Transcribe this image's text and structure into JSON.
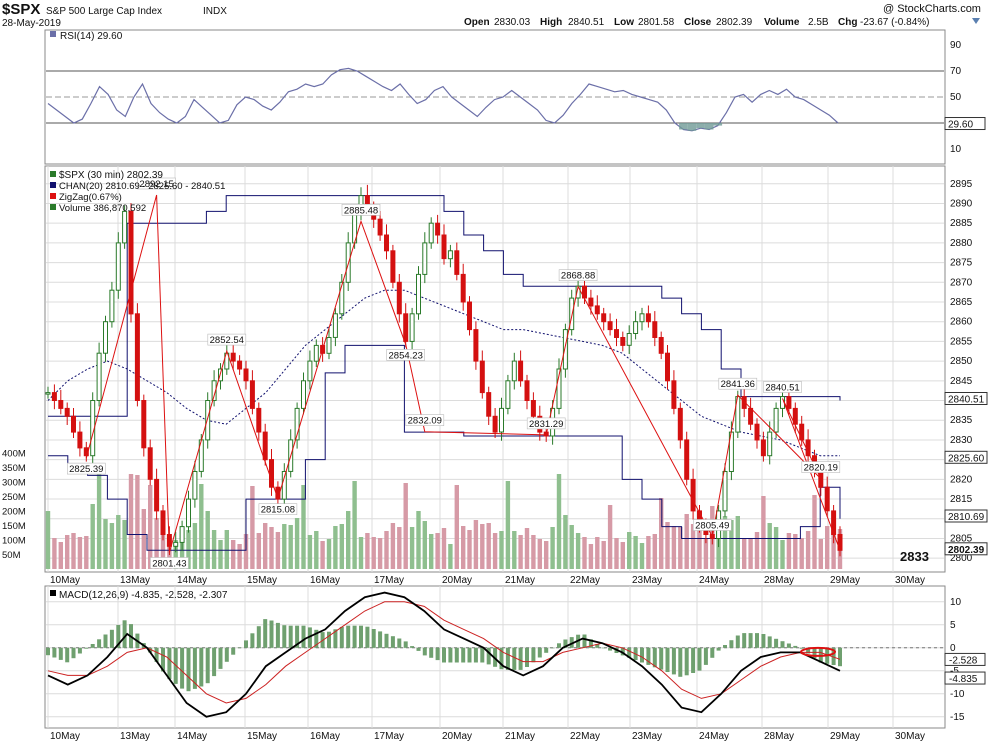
{
  "header": {
    "symbol": "$SPX",
    "name": "S&P 500 Large Cap Index",
    "exchange": "INDX",
    "date": "28-May-2019",
    "watermark": "@ StockCharts.com",
    "ohlc": {
      "open_label": "Open",
      "open": "2830.03",
      "high_label": "High",
      "high": "2840.51",
      "low_label": "Low",
      "low": "2801.58",
      "close_label": "Close",
      "close": "2802.39",
      "volume_label": "Volume",
      "volume": "2.5B",
      "chg_label": "Chg",
      "chg": "-23.67 (-0.84%)"
    }
  },
  "colors": {
    "up": "#2a7a2a",
    "down": "#d41010",
    "rsi": "#6b6fa8",
    "channel": "#10106e",
    "zigzag": "#dd1111",
    "vol_up": "#8fbf8f",
    "vol_down": "#d69aa6",
    "macd": "#000000",
    "signal": "#cc2222",
    "hist": "#6fa06f",
    "grid": "#dcdcdc"
  },
  "chart_data": [
    {
      "type": "line",
      "panel": "RSI",
      "legend": "RSI(14) 29.60",
      "ylim": [
        0,
        100
      ],
      "y_ticks": [
        10,
        30,
        50,
        70,
        90
      ],
      "reference_lines": [
        30,
        50,
        70
      ],
      "last_value": "29.60",
      "values": [
        45,
        40,
        35,
        30,
        33,
        45,
        58,
        52,
        40,
        35,
        50,
        60,
        45,
        38,
        33,
        30,
        35,
        48,
        42,
        36,
        30,
        32,
        44,
        50,
        48,
        43,
        40,
        46,
        54,
        56,
        60,
        58,
        60,
        67,
        71,
        72,
        70,
        66,
        62,
        58,
        55,
        60,
        52,
        45,
        48,
        55,
        58,
        50,
        45,
        40,
        35,
        42,
        48,
        50,
        55,
        50,
        45,
        40,
        32,
        30,
        36,
        45,
        52,
        60,
        58,
        56,
        54,
        55,
        52,
        50,
        48,
        46,
        40,
        30,
        25,
        24,
        26,
        25,
        28,
        38,
        50,
        52,
        46,
        52,
        55,
        52,
        56,
        50,
        48,
        44,
        40,
        36,
        30
      ]
    },
    {
      "type": "bar",
      "panel": "Price",
      "series_labels": {
        "price": "$SPX (30 min) 2802.39",
        "channel": "CHAN(20) 2810.69 - 2825.60 - 2840.51",
        "zigzag": "ZigZag(0.67%)",
        "volume": "Volume 386,870,592"
      },
      "ylim": [
        2797,
        2899
      ],
      "y_ticks": [
        2800,
        2805,
        2810,
        2815,
        2820,
        2825,
        2830,
        2835,
        2840,
        2845,
        2850,
        2855,
        2860,
        2865,
        2870,
        2875,
        2880,
        2885,
        2890,
        2895
      ],
      "x_ticks": [
        "10May",
        "13May",
        "14May",
        "15May",
        "16May",
        "17May",
        "20May",
        "21May",
        "22May",
        "23May",
        "24May",
        "28May",
        "29May",
        "30May"
      ],
      "volume_ticks": [
        "50M",
        "100M",
        "150M",
        "200M",
        "250M",
        "300M",
        "350M",
        "400M"
      ],
      "closes": [
        2842,
        2840,
        2838,
        2836,
        2832,
        2828,
        2826,
        2840,
        2852,
        2860,
        2868,
        2880,
        2888,
        2862,
        2840,
        2828,
        2820,
        2812,
        2806,
        2803,
        2804,
        2808,
        2815,
        2822,
        2830,
        2840,
        2845,
        2848,
        2852,
        2850,
        2848,
        2845,
        2838,
        2832,
        2825,
        2818,
        2815,
        2822,
        2830,
        2838,
        2845,
        2850,
        2854,
        2852,
        2856,
        2862,
        2870,
        2880,
        2888,
        2892,
        2889,
        2886,
        2882,
        2878,
        2870,
        2862,
        2855,
        2862,
        2872,
        2880,
        2885,
        2882,
        2876,
        2878,
        2872,
        2865,
        2858,
        2850,
        2842,
        2836,
        2832,
        2838,
        2845,
        2850,
        2845,
        2840,
        2836,
        2832,
        2831,
        2838,
        2848,
        2858,
        2866,
        2869,
        2866,
        2864,
        2862,
        2860,
        2858,
        2856,
        2854,
        2857,
        2860,
        2862,
        2860,
        2856,
        2852,
        2845,
        2838,
        2830,
        2820,
        2812,
        2808,
        2806,
        2805,
        2812,
        2822,
        2832,
        2841,
        2838,
        2834,
        2830,
        2826,
        2832,
        2838,
        2841,
        2838,
        2834,
        2830,
        2826,
        2822,
        2818,
        2812,
        2806,
        2802
      ],
      "channel_upper": [
        2836,
        2836,
        2836,
        2836,
        2885,
        2885,
        2885,
        2885,
        2888,
        2892,
        2892,
        2892,
        2892,
        2892,
        2892,
        2892,
        2892,
        2892,
        2892,
        2892,
        2888,
        2882,
        2878,
        2872,
        2869,
        2869,
        2869,
        2869,
        2869,
        2869,
        2869,
        2866,
        2862,
        2858,
        2848,
        2841,
        2841,
        2841,
        2841,
        2841,
        2840
      ],
      "channel_mid": [
        2840,
        2845,
        2848,
        2850,
        2848,
        2845,
        2842,
        2838,
        2835,
        2834,
        2838,
        2842,
        2848,
        2854,
        2858,
        2862,
        2866,
        2868,
        2868,
        2866,
        2864,
        2862,
        2860,
        2858,
        2858,
        2857,
        2856,
        2855,
        2854,
        2852,
        2848,
        2844,
        2840,
        2836,
        2834,
        2832,
        2831,
        2830,
        2828,
        2826,
        2826
      ],
      "channel_lower": [
        2826,
        2824,
        2821,
        2815,
        2806,
        2802,
        2802,
        2802,
        2802,
        2802,
        2815,
        2815,
        2815,
        2825,
        2847,
        2854,
        2854,
        2854,
        2832,
        2832,
        2832,
        2831,
        2831,
        2831,
        2831,
        2831,
        2831,
        2831,
        2831,
        2820,
        2815,
        2808,
        2805,
        2805,
        2805,
        2805,
        2805,
        2805,
        2808,
        2818,
        2810
      ],
      "zigzag_points": [
        {
          "value": 2825.39,
          "label": "2825.39"
        },
        {
          "value": 2892.15,
          "label": "2892.15"
        },
        {
          "value": 2801.43,
          "label": "2801.43"
        },
        {
          "value": 2852.54,
          "label": "2852.54"
        },
        {
          "value": 2815.08,
          "label": "2815.08"
        },
        {
          "value": 2885.48,
          "label": "2885.48"
        },
        {
          "value": 2854.23,
          "label": "2854.23"
        },
        {
          "value": 2832.09,
          "label": "2832.09"
        },
        {
          "value": 2868.88,
          "label": "2868.88"
        },
        {
          "value": 2831.29,
          "label": "2831.29"
        },
        {
          "value": 2841.36,
          "label": "2841.36"
        },
        {
          "value": 2805.49,
          "label": "2805.49"
        },
        {
          "value": 2840.51,
          "label": "2840.51"
        },
        {
          "value": 2820.19,
          "label": "2820.19"
        }
      ],
      "right_badges": [
        "2840.51",
        "2825.60",
        "2810.69",
        "2802.39"
      ],
      "annotation": "2833"
    },
    {
      "type": "line",
      "panel": "MACD",
      "legend": "MACD(12,26,9) -4.835, -2.528, -2.307",
      "ylim": [
        -17,
        13
      ],
      "y_ticks": [
        -15,
        -10,
        -5,
        0,
        5,
        10
      ],
      "last_values": {
        "macd": "-4.835",
        "signal": "-2.528"
      },
      "macd": [
        -6,
        -8,
        -6,
        -2,
        3,
        0,
        -6,
        -12,
        -15,
        -14,
        -10,
        -4,
        -1,
        2,
        4,
        8,
        11,
        12,
        11,
        8,
        4,
        2,
        0,
        -4,
        -6,
        -4,
        0,
        2,
        1,
        -1,
        -4,
        -8,
        -13,
        -14,
        -10,
        -5,
        -2,
        -1,
        -1,
        -3,
        -5
      ],
      "signal": [
        -5,
        -6,
        -6,
        -4,
        -1,
        0,
        -2,
        -6,
        -10,
        -12,
        -11,
        -8,
        -4,
        -1,
        2,
        5,
        8,
        10,
        10,
        9,
        6,
        4,
        2,
        -1,
        -3,
        -3,
        -1,
        0,
        1,
        0,
        -2,
        -5,
        -9,
        -11,
        -10,
        -7,
        -4,
        -2,
        -1,
        -1,
        -2.5
      ]
    }
  ]
}
